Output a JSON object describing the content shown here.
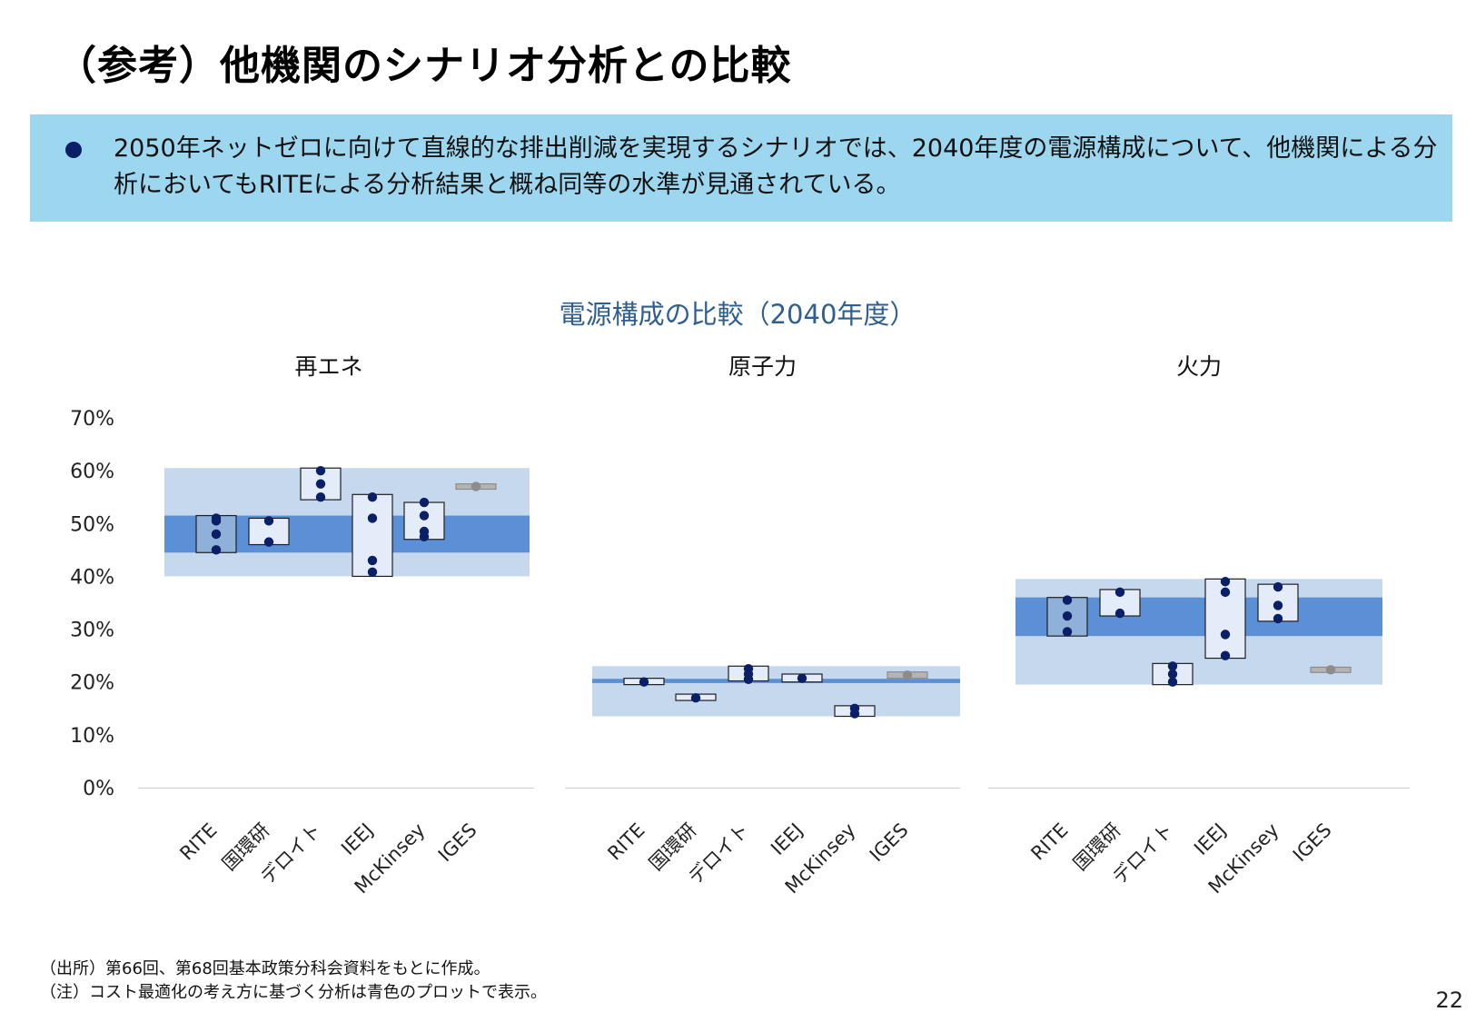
{
  "slide": {
    "title": "（参考）他機関のシナリオ分析との比較",
    "summary": "2050年ネットゼロに向けて直線的な排出削減を実現するシナリオでは、2040年度の電源構成について、他機関による分析においてもRITEによる分析結果と概ね同等の水準が見通されている。",
    "footnote_source": "（出所）第66回、第68回基本政策分科会資料をもとに作成。",
    "footnote_note": "（注）コスト最適化の考え方に基づく分析は青色のプロットで表示。",
    "page_number": "22"
  },
  "chart_data": {
    "type": "box-range-dot",
    "title": "電源構成の比較（2040年度）",
    "ylim": [
      0,
      70
    ],
    "yticks": [
      "0%",
      "10%",
      "20%",
      "30%",
      "40%",
      "50%",
      "60%",
      "70%"
    ],
    "categories": [
      "RITE",
      "国環研",
      "デロイト",
      "IEEJ",
      "McKinsey",
      "IGES"
    ],
    "colors": {
      "outer_range": "#c5d8ee",
      "inner_range": "#5b8fd6",
      "box_fill": "#e3ecf8",
      "rite_box_fill": "#8fb0d8",
      "dot_blue": "#0a1f66",
      "dot_gray": "#8c8c8c",
      "box_gray": "#b4b4b4"
    },
    "panels": [
      {
        "title": "再エネ",
        "outer_range": [
          40,
          60.5
        ],
        "inner_range": [
          44.5,
          51.5
        ],
        "series": [
          {
            "category": "RITE",
            "box": [
              44.5,
              51.5
            ],
            "points": [
              45,
              48,
              50.5,
              51
            ],
            "style": "blue"
          },
          {
            "category": "国環研",
            "box": [
              46,
              51
            ],
            "points": [
              46.5,
              50.5
            ],
            "style": "blue"
          },
          {
            "category": "デロイト",
            "box": [
              54.5,
              60.5
            ],
            "points": [
              55,
              57.5,
              60
            ],
            "style": "blue"
          },
          {
            "category": "IEEJ",
            "box": [
              40,
              55.5
            ],
            "points": [
              40.8,
              43,
              51,
              55
            ],
            "style": "blue"
          },
          {
            "category": "McKinsey",
            "box": [
              47,
              54
            ],
            "points": [
              47.5,
              48.5,
              51.5,
              54
            ],
            "style": "blue"
          },
          {
            "category": "IGES",
            "box": [
              56.5,
              57.5
            ],
            "points": [
              57
            ],
            "style": "gray"
          }
        ]
      },
      {
        "title": "原子力",
        "outer_range": [
          13.5,
          23
        ],
        "inner_range": [
          19.8,
          20.6
        ],
        "series": [
          {
            "category": "RITE",
            "box": [
              19.5,
              20.7
            ],
            "points": [
              20
            ],
            "style": "blue"
          },
          {
            "category": "国環研",
            "box": [
              16.5,
              17.7
            ],
            "points": [
              17
            ],
            "style": "blue"
          },
          {
            "category": "デロイト",
            "box": [
              20.2,
              23
            ],
            "points": [
              20.5,
              21.5,
              22.5
            ],
            "style": "blue"
          },
          {
            "category": "IEEJ",
            "box": [
              20,
              21.5
            ],
            "points": [
              20.7
            ],
            "style": "blue"
          },
          {
            "category": "McKinsey",
            "box": [
              13.5,
              15.5
            ],
            "points": [
              14,
              15
            ],
            "style": "blue"
          },
          {
            "category": "IGES",
            "box": [
              20.7,
              21.9
            ],
            "points": [
              21.3
            ],
            "style": "gray"
          }
        ]
      },
      {
        "title": "火力",
        "outer_range": [
          19.5,
          39.5
        ],
        "inner_range": [
          28.7,
          36
        ],
        "series": [
          {
            "category": "RITE",
            "box": [
              28.7,
              36
            ],
            "points": [
              29.5,
              32.5,
              35.5
            ],
            "style": "blue"
          },
          {
            "category": "国環研",
            "box": [
              32.5,
              37.5
            ],
            "points": [
              33,
              37
            ],
            "style": "blue"
          },
          {
            "category": "デロイト",
            "box": [
              19.5,
              23.5
            ],
            "points": [
              20,
              21.5,
              23
            ],
            "style": "blue"
          },
          {
            "category": "IEEJ",
            "box": [
              24.5,
              39.5
            ],
            "points": [
              25,
              29,
              37,
              39
            ],
            "style": "blue"
          },
          {
            "category": "McKinsey",
            "box": [
              31.5,
              38.5
            ],
            "points": [
              32,
              34.5,
              38
            ],
            "style": "blue"
          },
          {
            "category": "IGES",
            "box": [
              21.8,
              22.8
            ],
            "points": [
              22.3
            ],
            "style": "gray"
          }
        ]
      }
    ]
  }
}
